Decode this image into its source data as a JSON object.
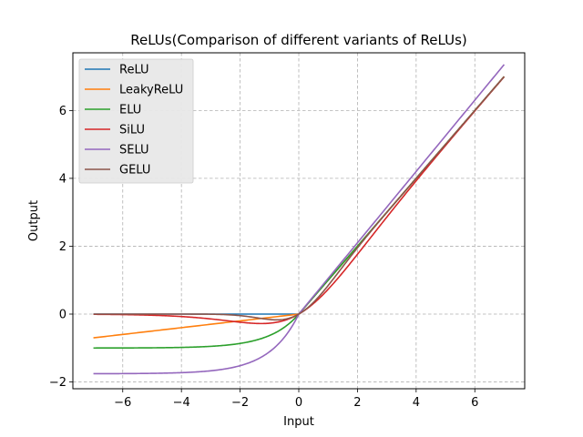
{
  "chart_data": {
    "type": "line",
    "title": "ReLUs(Comparison of different variants of ReLUs)",
    "xlabel": "Input",
    "ylabel": "Output",
    "xlim": [
      -7.7,
      7.7
    ],
    "ylim": [
      -2.2,
      7.7
    ],
    "xticks": [
      -6,
      -4,
      -2,
      0,
      2,
      4,
      6
    ],
    "xtick_labels": [
      "−6",
      "−4",
      "−2",
      "0",
      "2",
      "4",
      "6"
    ],
    "yticks": [
      -2,
      0,
      2,
      4,
      6
    ],
    "ytick_labels": [
      "−2",
      "0",
      "2",
      "4",
      "6"
    ],
    "x_domain": [
      -7,
      7
    ],
    "grid": true,
    "grid_style": "dashed",
    "legend_position": "upper-left",
    "series": [
      {
        "name": "ReLU",
        "color": "#1f77b4",
        "fn": "relu"
      },
      {
        "name": "LeakyReLU",
        "color": "#ff7f0e",
        "fn": "leaky_relu",
        "negative_slope": 0.1
      },
      {
        "name": "ELU",
        "color": "#2ca02c",
        "fn": "elu",
        "alpha": 1.0
      },
      {
        "name": "SiLU",
        "color": "#d62728",
        "fn": "silu"
      },
      {
        "name": "SELU",
        "color": "#9467bd",
        "fn": "selu",
        "alpha": 1.6733,
        "scale": 1.0507
      },
      {
        "name": "GELU",
        "color": "#8c564b",
        "fn": "gelu"
      }
    ]
  }
}
